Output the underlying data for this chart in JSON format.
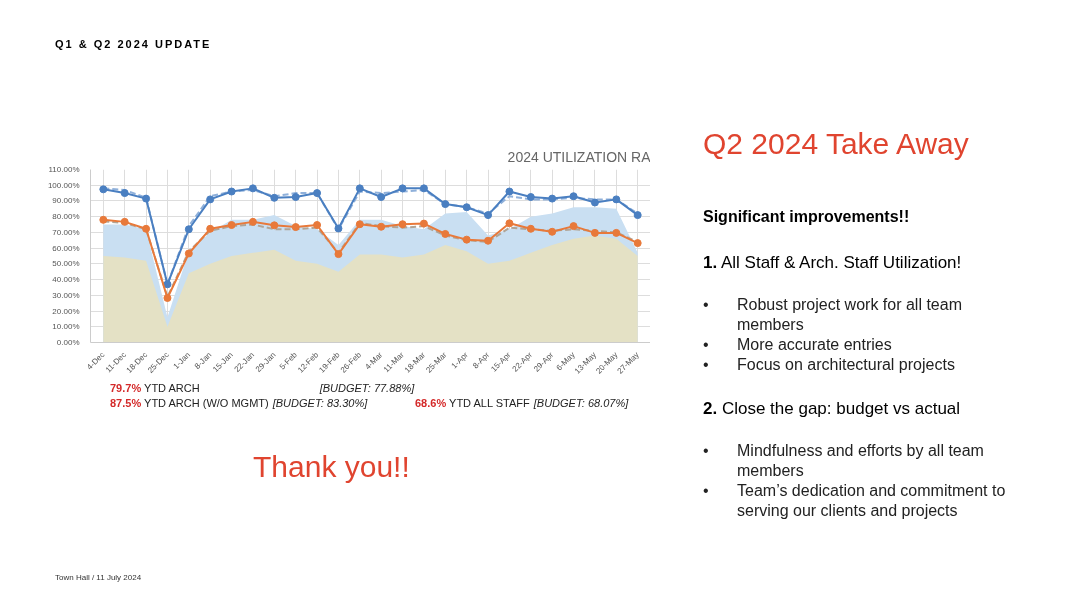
{
  "chart_data": {
    "type": "line",
    "title": "2024 UTILIZATION RA",
    "categories": [
      "4-Dec",
      "11-Dec",
      "18-Dec",
      "25-Dec",
      "1-Jan",
      "8-Jan",
      "15-Jan",
      "22-Jan",
      "29-Jan",
      "5-Feb",
      "12-Feb",
      "19-Feb",
      "26-Feb",
      "4-Mar",
      "11-Mar",
      "18-Mar",
      "25-Mar",
      "1-Apr",
      "8-Apr",
      "15-Apr",
      "22-Apr",
      "29-Apr",
      "6-May",
      "13-May",
      "20-May",
      "27-May"
    ],
    "series": [
      {
        "type": "area",
        "color": "#c9dff2",
        "values": [
          75,
          75,
          72,
          16,
          58,
          70,
          78,
          78,
          81,
          74,
          72,
          62,
          78,
          78,
          74,
          72,
          82,
          83,
          68,
          72,
          80,
          82,
          86,
          86,
          85,
          57
        ]
      },
      {
        "type": "area",
        "color": "#e4e1c5",
        "values": [
          55,
          54,
          52,
          10,
          44,
          50,
          55,
          57,
          59,
          52,
          50,
          45,
          56,
          56,
          54,
          56,
          62,
          58,
          50,
          52,
          57,
          62,
          66,
          68,
          66,
          55
        ]
      },
      {
        "color": "#8fb0da",
        "line_style": "dashed",
        "marker": "none",
        "values": [
          98,
          97,
          92,
          37,
          74,
          93,
          96,
          97,
          93,
          95,
          95,
          72,
          96,
          95,
          96,
          97,
          88,
          86,
          82,
          93,
          91,
          91,
          92,
          91,
          91,
          82
        ]
      },
      {
        "color": "#b0a496",
        "line_style": "dashed",
        "marker": "none",
        "values": [
          77,
          76,
          72,
          29,
          58,
          71,
          74,
          75,
          72,
          72,
          73,
          57,
          76,
          74,
          73,
          74,
          68,
          65,
          64,
          73,
          72,
          71,
          72,
          71,
          70,
          64
        ]
      },
      {
        "color": "#4a7fc1",
        "line_style": "solid",
        "marker": "circle",
        "values": [
          97.4,
          95,
          91.5,
          37,
          72,
          91,
          96,
          98,
          92,
          92.5,
          95,
          72.5,
          98,
          92.5,
          98,
          98,
          88,
          86,
          81,
          96,
          92.5,
          91.5,
          93,
          89,
          91,
          81
        ]
      },
      {
        "color": "#e8793a",
        "line_style": "solid",
        "marker": "circle",
        "values": [
          78,
          76.7,
          72.3,
          28.3,
          56.6,
          72.3,
          74.7,
          76.7,
          74.5,
          73.4,
          74.7,
          56.2,
          75.2,
          73.6,
          75.2,
          75.6,
          69,
          65.4,
          64.7,
          75.8,
          72.3,
          70.4,
          74,
          69.7,
          69.7,
          63.2
        ]
      }
    ],
    "ylim": [
      0,
      110
    ],
    "yticks": [
      {
        "value": 0,
        "label": "0.00%"
      },
      {
        "value": 10,
        "label": "10.00%"
      },
      {
        "value": 20,
        "label": "20.00%"
      },
      {
        "value": 30,
        "label": "30.00%"
      },
      {
        "value": 40,
        "label": "40.00%"
      },
      {
        "value": 50,
        "label": "50.00%"
      },
      {
        "value": 60,
        "label": "60.00%"
      },
      {
        "value": 70,
        "label": "70.00%"
      },
      {
        "value": 80,
        "label": "80.00%"
      },
      {
        "value": 90,
        "label": "90.00%"
      },
      {
        "value": 100,
        "label": "100.00%"
      },
      {
        "value": 110,
        "label": "110.00%"
      }
    ],
    "grid": true,
    "annotations": [
      "Q1 & Q2 2024 UPDATE",
      "79.7%",
      "YTD ARCH",
      "[BUDGET: 77.88%]",
      "87.5%",
      "YTD ARCH (W/O MGMT)",
      "[BUDGET: 83.30%]",
      "68.6%",
      "YTD ALL STAFF",
      "[BUDGET: 68.07%]",
      "Thank you!!",
      "Q2 2024 Take Away",
      "Significant improvements!!",
      "1.",
      "All Staff & Arch. Staff Utilization!",
      "Robust project work for all team members",
      "More accurate entries",
      "Focus on architectural projects",
      "2.",
      "Close the gap: budget vs actual",
      "Mindfulness and efforts by all team members",
      "Team’s dedication and commitment to serving our clients and projects",
      "Town Hall / 11 July 2024",
      "•",
      "•",
      "•",
      "•",
      "•"
    ]
  }
}
